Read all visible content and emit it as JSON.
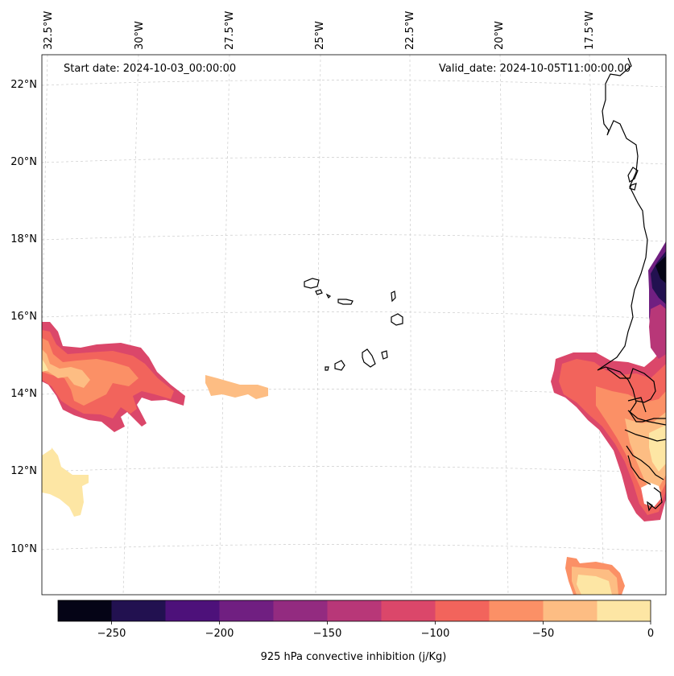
{
  "map": {
    "lon_labels": [
      "32.5°W",
      "30°W",
      "27.5°W",
      "25°W",
      "22.5°W",
      "20°W",
      "17.5°W"
    ],
    "lat_labels": [
      "22°N",
      "20°N",
      "18°N",
      "16°N",
      "14°N",
      "12°N",
      "10°N"
    ],
    "start_date": "Start date: 2024-10-03_00:00:00",
    "valid_date": "Valid_date: 2024-10-05T11:00:00.00",
    "features": [
      "cape-verde-islands",
      "west-africa-coastline",
      "convective-inhibition-fields"
    ]
  },
  "colorbar": {
    "title": "925 hPa convective inhibition (j/Kg)",
    "tick_labels": [
      "−250",
      "−200",
      "−150",
      "−100",
      "−50",
      "0"
    ],
    "levels": [
      -275,
      -250,
      -225,
      -200,
      -175,
      -150,
      -125,
      -100,
      -75,
      -50,
      -25,
      0
    ],
    "colors": [
      "#050416",
      "#221150",
      "#4d117a",
      "#701f81",
      "#932b80",
      "#b83778",
      "#db476a",
      "#f2645c",
      "#fb9066",
      "#fdbd83",
      "#fde6a4"
    ]
  }
}
